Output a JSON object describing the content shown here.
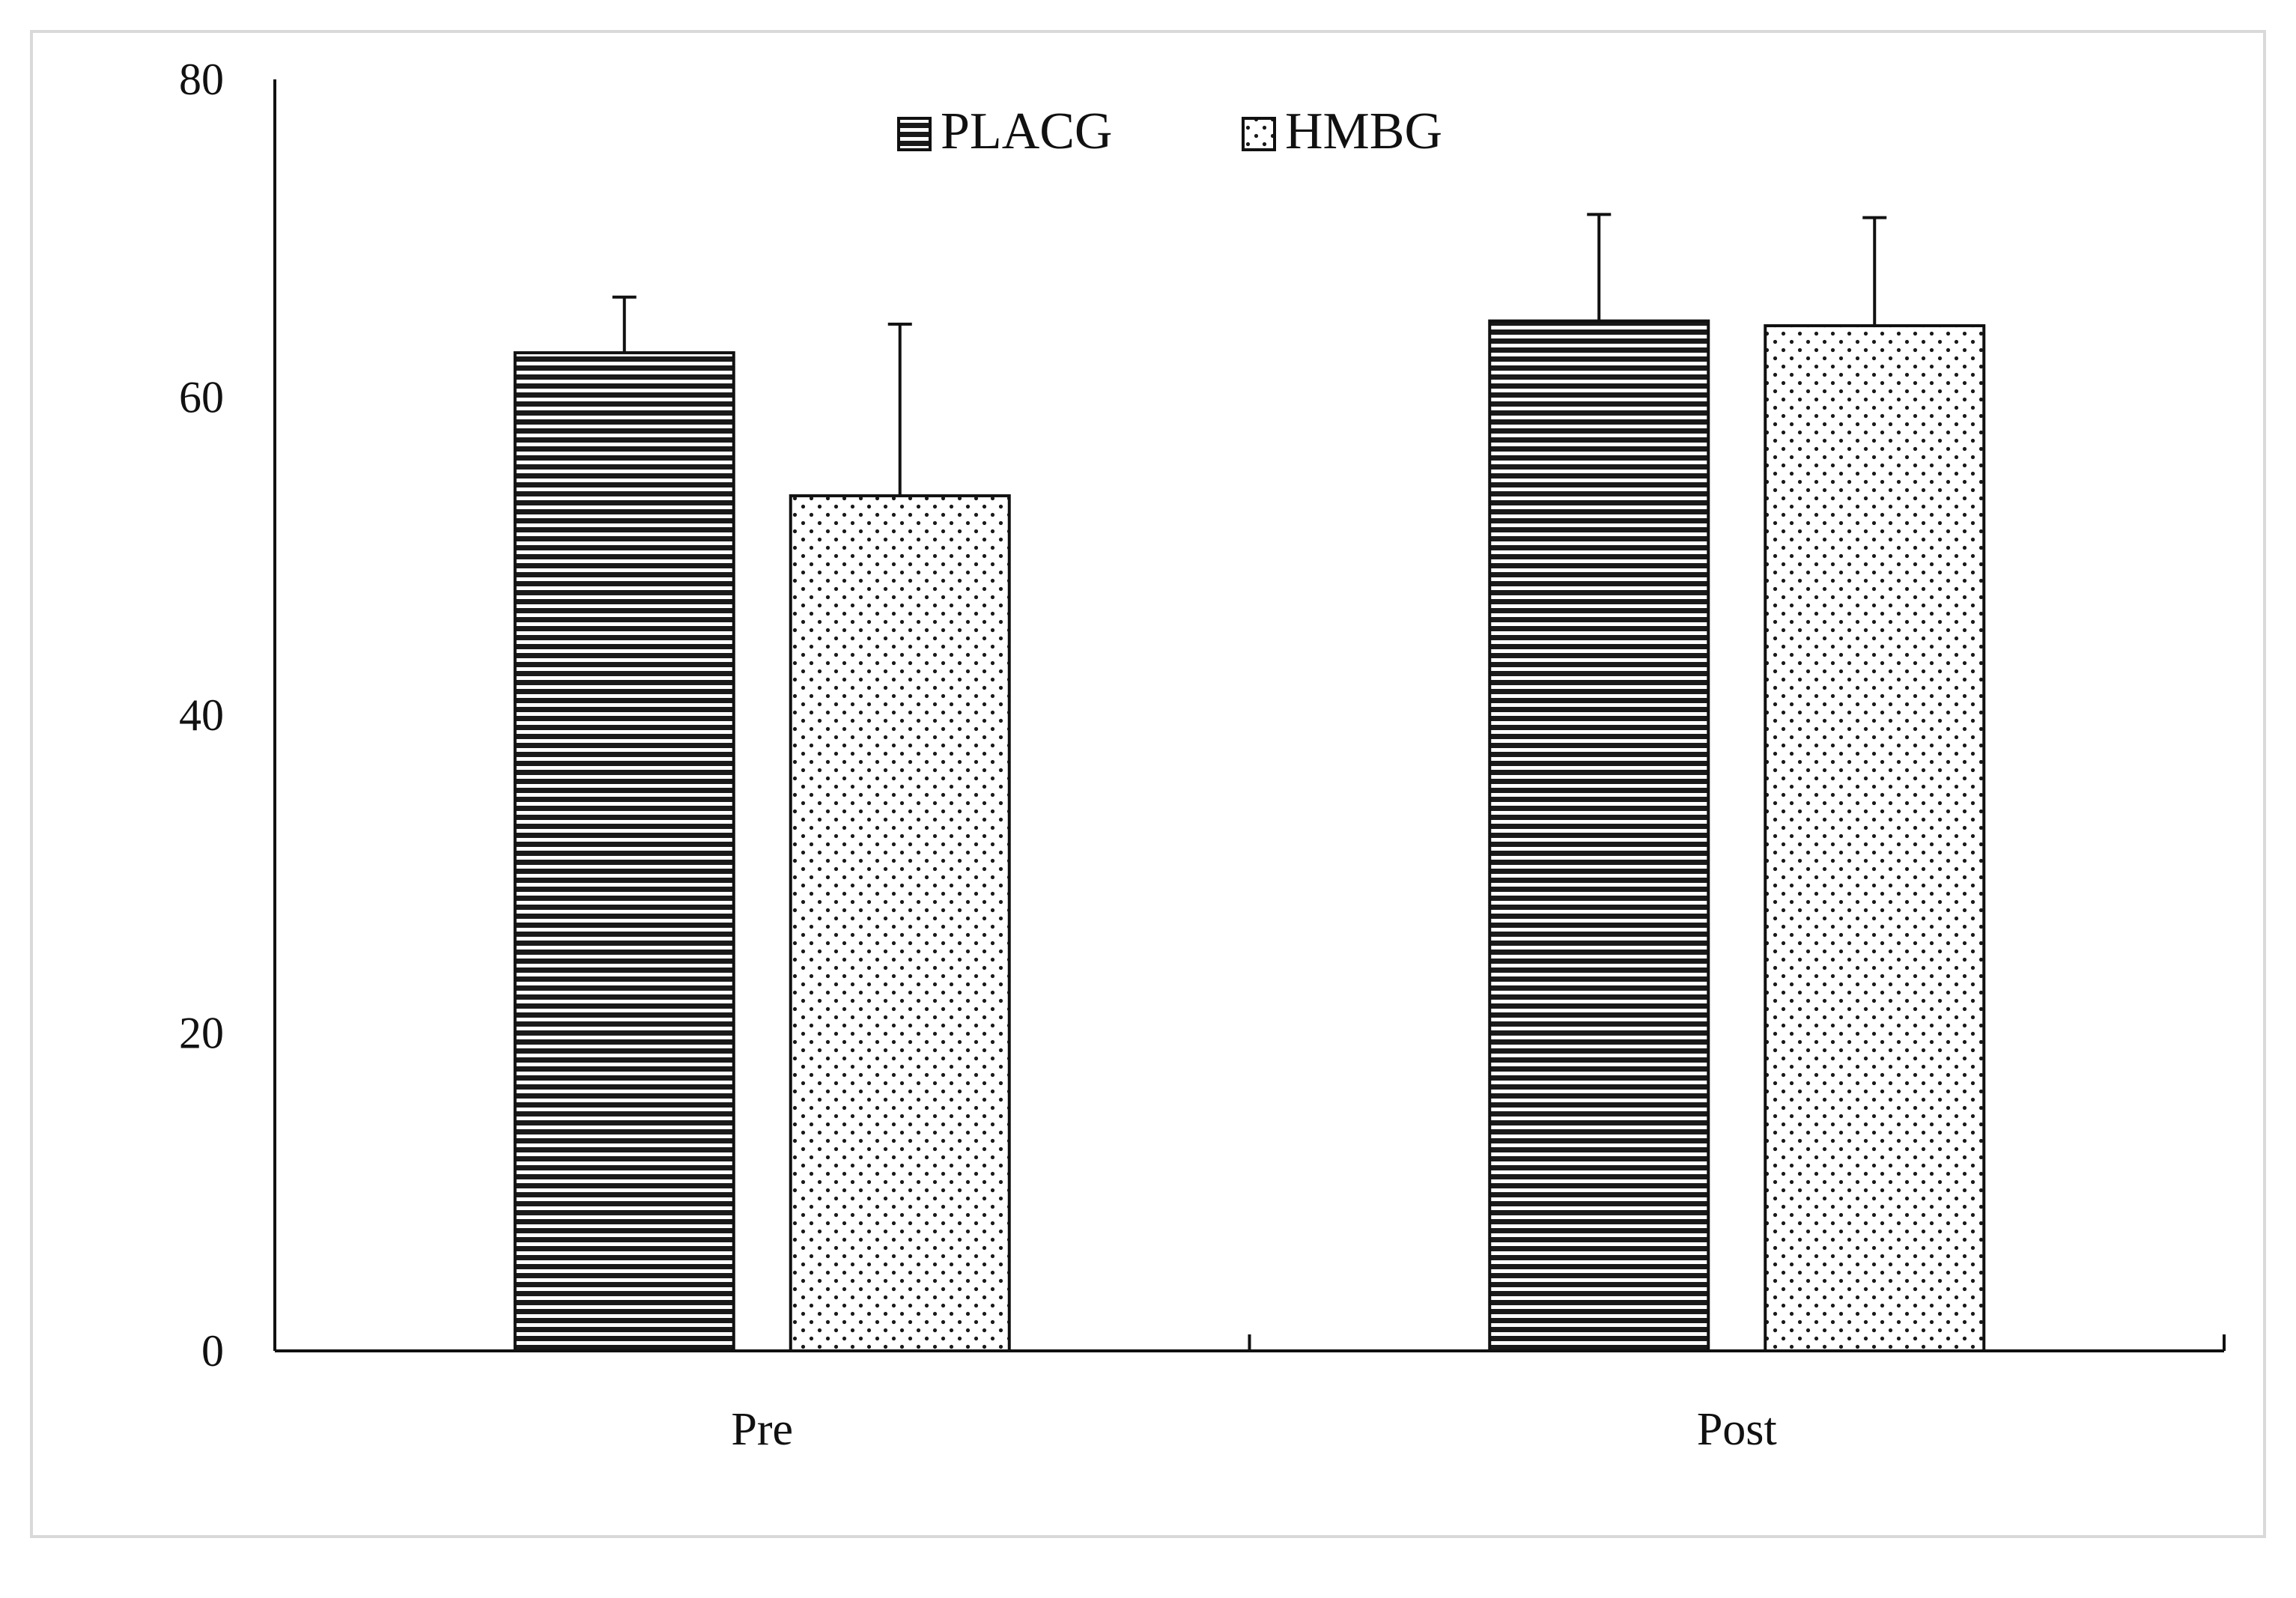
{
  "chart_data": {
    "type": "bar",
    "categories": [
      "Pre",
      "Post"
    ],
    "series": [
      {
        "name": "PLACG",
        "values": [
          62.8,
          64.8
        ],
        "error": [
          3.5,
          6.7
        ],
        "pattern": "horizontal-stripes"
      },
      {
        "name": "HMBG",
        "values": [
          53.8,
          64.5
        ],
        "error": [
          10.8,
          6.8
        ],
        "pattern": "dots"
      }
    ],
    "ylim": [
      0,
      80
    ],
    "yticks": [
      "0",
      "20",
      "40",
      "60",
      "80"
    ],
    "xlabel": "",
    "ylabel": "",
    "title": "",
    "legend": {
      "position": "top-center"
    },
    "grid": false,
    "colors": {
      "ink": "#111111",
      "frame": "#d9d9d9",
      "background": "#ffffff"
    }
  }
}
